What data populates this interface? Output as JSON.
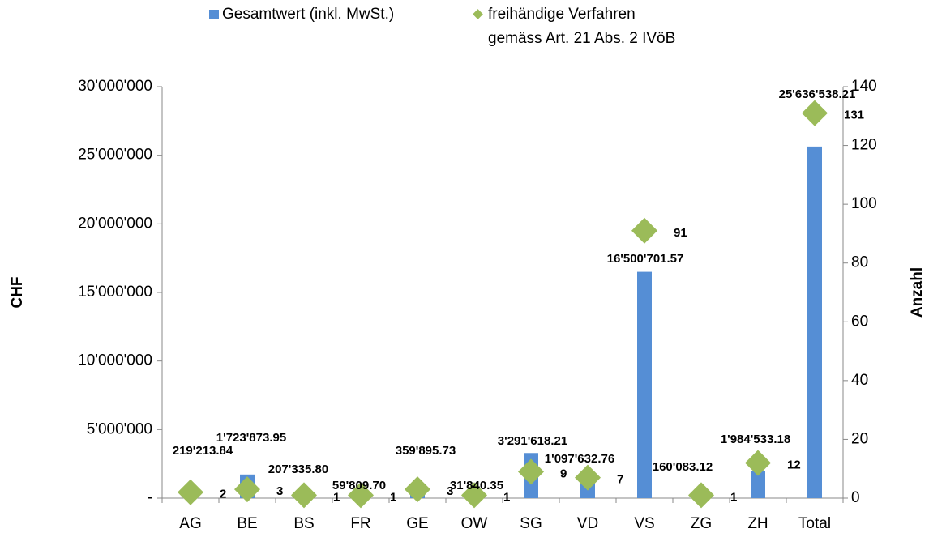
{
  "chart_data": {
    "type": "bar+scatter",
    "categories": [
      "AG",
      "BE",
      "BS",
      "FR",
      "GE",
      "OW",
      "SG",
      "VD",
      "VS",
      "ZG",
      "ZH",
      "Total"
    ],
    "series": [
      {
        "name": "Gesamtwert (inkl. MwSt.)",
        "type": "bar",
        "color": "#558ed5",
        "values": [
          219213.84,
          1723873.95,
          207335.8,
          59809.7,
          359895.73,
          31840.35,
          3291618.21,
          1097632.76,
          16500701.57,
          160083.12,
          1984533.18,
          25636538.21
        ],
        "value_labels": [
          "219'213.84",
          "1'723'873.95",
          "207'335.80",
          "59'809.70",
          "359'895.73",
          "31'840.35",
          "3'291'618.21",
          "1'097'632.76",
          "16'500'701.57",
          "160'083.12",
          "1'984'533.18",
          "25'636'538.21"
        ]
      },
      {
        "name": "freihändige Verfahren\ngemäss Art. 21 Abs. 2 IVöB",
        "type": "scatter",
        "axis": "y2",
        "color": "#9bbb59",
        "values": [
          2,
          3,
          1,
          1,
          3,
          1,
          9,
          7,
          91,
          1,
          12,
          131
        ]
      }
    ],
    "ylabel": "CHF",
    "y2label": "Anzahl",
    "ylim": [
      0,
      30000000
    ],
    "yticks": [
      {
        "value": 0,
        "label": "-"
      },
      {
        "value": 5000000,
        "label": "5'000'000"
      },
      {
        "value": 10000000,
        "label": "10'000'000"
      },
      {
        "value": 15000000,
        "label": "15'000'000"
      },
      {
        "value": 20000000,
        "label": "20'000'000"
      },
      {
        "value": 25000000,
        "label": "25'000'000"
      },
      {
        "value": 30000000,
        "label": "30'000'000"
      }
    ],
    "y2lim": [
      0,
      140
    ],
    "y2ticks": [
      0,
      20,
      40,
      60,
      80,
      100,
      120,
      140
    ],
    "legend": "top"
  }
}
